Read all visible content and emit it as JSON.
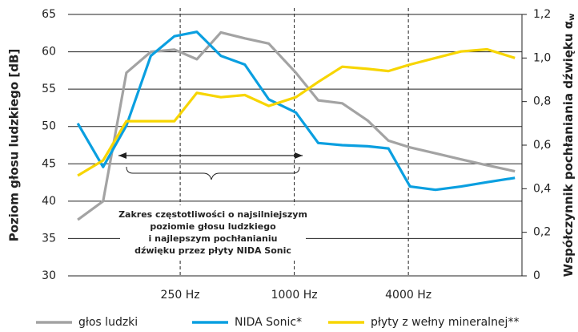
{
  "chart_data": {
    "type": "line",
    "y_label": "Poziom głosu ludzkiego [dB]",
    "y2_label": "Współczynnik pochłaniania dźwięku α",
    "y2_label_sub": "w",
    "annotation": [
      "Zakres częstotliwości o najsilniejszym",
      "poziomie głosu ludzkiego",
      "i najlepszym pochłanianiu",
      "dźwięku przez płyty NIDA Sonic"
    ],
    "x": [
      72,
      98,
      130,
      175,
      233,
      306,
      410,
      548,
      733,
      1020,
      1338,
      1790,
      2440,
      3140,
      4080,
      5560,
      7580,
      10400,
      14600
    ],
    "xscale": "log",
    "xlim": [
      64,
      15900
    ],
    "xticks": [
      {
        "value": 250,
        "label": "250 Hz"
      },
      {
        "value": 1000,
        "label": "1000 Hz"
      },
      {
        "value": 4000,
        "label": "4000 Hz"
      }
    ],
    "ylim": [
      30,
      65
    ],
    "yticks": [
      30,
      35,
      40,
      45,
      50,
      55,
      60,
      65
    ],
    "y2lim": [
      0,
      1.2
    ],
    "y2ticks": [
      0,
      {
        "value": 0.2,
        "label": "0,2"
      },
      {
        "value": 0.4,
        "label": "0,4"
      },
      {
        "value": 0.6,
        "label": "0,6"
      },
      {
        "value": 0.8,
        "label": "0,8"
      },
      {
        "value": 1.0,
        "label": "1,0"
      },
      {
        "value": 1.2,
        "label": "1,2"
      }
    ],
    "grid": true,
    "legend": "bottom",
    "series": [
      {
        "name": "głos ludzki",
        "color": "#a3a3a3",
        "values": [
          37.5,
          40,
          57.2,
          60,
          60.3,
          59,
          62.6,
          61.8,
          61.1,
          57.2,
          53.5,
          53.1,
          50.8,
          48.1,
          47.2,
          46.4,
          45.6,
          44.8,
          44
        ]
      },
      {
        "name": "NIDA Sonic*",
        "color": "#0a9fe0",
        "axis": "y2",
        "values": [
          0.7,
          0.5,
          0.69,
          1.01,
          1.1,
          1.12,
          1.01,
          0.97,
          0.81,
          0.75,
          0.61,
          0.6,
          0.595,
          0.585,
          0.41,
          0.395,
          0.41,
          0.43,
          0.45
        ]
      },
      {
        "name": "płyty z wełny mineralnej**",
        "color": "#f7d500",
        "axis": "y2",
        "values": [
          0.46,
          0.53,
          0.71,
          0.71,
          0.71,
          0.84,
          0.82,
          0.83,
          0.78,
          0.82,
          0.89,
          0.96,
          0.95,
          0.94,
          0.97,
          1.0,
          1.03,
          1.04,
          1.0
        ]
      }
    ]
  }
}
